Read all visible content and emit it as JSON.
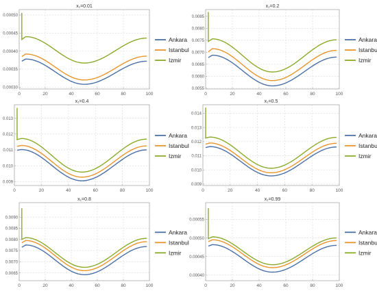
{
  "chart_data": [
    {
      "type": "line",
      "title": "x₁=0.01",
      "xlabel": "",
      "ylabel": "",
      "xlim": [
        0,
        100
      ],
      "ylim": [
        0.000295,
        0.000515
      ],
      "xticks": [
        0,
        20,
        40,
        60,
        80,
        100
      ],
      "yticks": [
        0.0003,
        0.00035,
        0.0004,
        0.00045,
        0.0005
      ],
      "ytick_labels": [
        "0.00030",
        "0.00035",
        "0.00040",
        "0.00045",
        "0.00050"
      ],
      "grid": true,
      "legend_position": "right",
      "series": [
        {
          "name": "Ankara",
          "values": {
            "start": 0.000372,
            "peak": 0.000378,
            "min": 0.000308,
            "end": 0.000372,
            "spike": 0.000372
          }
        },
        {
          "name": "Istanbul",
          "values": {
            "start": 0.000385,
            "peak": 0.000392,
            "min": 0.00032,
            "end": 0.000386,
            "spike": 0.000385
          }
        },
        {
          "name": "Izmir",
          "values": {
            "start": 0.000432,
            "peak": 0.00044,
            "min": 0.000367,
            "end": 0.000436,
            "spike": 0.000506
          }
        }
      ]
    },
    {
      "type": "line",
      "title": "x₁=0.2",
      "xlabel": "",
      "ylabel": "",
      "xlim": [
        0,
        100
      ],
      "ylim": [
        0.00547,
        0.00878
      ],
      "xticks": [
        0,
        20,
        40,
        60,
        80,
        100
      ],
      "yticks": [
        0.0055,
        0.006,
        0.0065,
        0.007,
        0.0075,
        0.008,
        0.0085
      ],
      "ytick_labels": [
        "0.0055",
        "0.0060",
        "0.0065",
        "0.0070",
        "0.0075",
        "0.0080",
        "0.0085"
      ],
      "grid": true,
      "legend_position": "right",
      "series": [
        {
          "name": "Ankara",
          "values": {
            "start": 0.00678,
            "peak": 0.00688,
            "min": 0.0056,
            "end": 0.0068,
            "spike": 0.00678
          }
        },
        {
          "name": "Istanbul",
          "values": {
            "start": 0.00702,
            "peak": 0.00715,
            "min": 0.00582,
            "end": 0.00708,
            "spike": 0.00702
          }
        },
        {
          "name": "Izmir",
          "values": {
            "start": 0.00745,
            "peak": 0.00756,
            "min": 0.00618,
            "end": 0.00752,
            "spike": 0.00868
          }
        }
      ]
    },
    {
      "type": "line",
      "title": "x₁=0.4",
      "xlabel": "",
      "ylabel": "",
      "xlim": [
        0,
        100
      ],
      "ylim": [
        0.00875,
        0.01385
      ],
      "xticks": [
        0,
        20,
        40,
        60,
        80,
        100
      ],
      "yticks": [
        0.009,
        0.01,
        0.011,
        0.012,
        0.013
      ],
      "ytick_labels": [
        "0.009",
        "0.010",
        "0.011",
        "0.012",
        "0.013"
      ],
      "grid": true,
      "legend_position": "right",
      "series": [
        {
          "name": "Ankara",
          "values": {
            "start": 0.01098,
            "peak": 0.01102,
            "min": 0.00905,
            "end": 0.011,
            "spike": 0.01098
          }
        },
        {
          "name": "Istanbul",
          "values": {
            "start": 0.01122,
            "peak": 0.01128,
            "min": 0.00928,
            "end": 0.01125,
            "spike": 0.01122
          }
        },
        {
          "name": "Izmir",
          "values": {
            "start": 0.01165,
            "peak": 0.01172,
            "min": 0.0096,
            "end": 0.01168,
            "spike": 0.01365
          }
        }
      ]
    },
    {
      "type": "line",
      "title": "x₁=0.5",
      "xlabel": "",
      "ylabel": "",
      "xlim": [
        0,
        100
      ],
      "ylim": [
        0.0089,
        0.0146
      ],
      "xticks": [
        0,
        20,
        40,
        60,
        80,
        100
      ],
      "yticks": [
        0.009,
        0.01,
        0.011,
        0.012,
        0.013,
        0.014
      ],
      "ytick_labels": [
        "0.009",
        "0.010",
        "0.011",
        "0.012",
        "0.013",
        "0.014"
      ],
      "grid": true,
      "legend_position": "right",
      "series": [
        {
          "name": "Ankara",
          "values": {
            "start": 0.01158,
            "peak": 0.01165,
            "min": 0.00958,
            "end": 0.01162,
            "spike": 0.01158
          }
        },
        {
          "name": "Istanbul",
          "values": {
            "start": 0.01182,
            "peak": 0.0119,
            "min": 0.0098,
            "end": 0.01188,
            "spike": 0.01182
          }
        },
        {
          "name": "Izmir",
          "values": {
            "start": 0.01225,
            "peak": 0.01232,
            "min": 0.01012,
            "end": 0.0123,
            "spike": 0.0144
          }
        }
      ]
    },
    {
      "type": "line",
      "title": "x₁=0.8",
      "xlabel": "",
      "ylabel": "",
      "xlim": [
        0,
        100
      ],
      "ylim": [
        0.00615,
        0.00965
      ],
      "xticks": [
        0,
        20,
        40,
        60,
        80,
        100
      ],
      "yticks": [
        0.0065,
        0.007,
        0.0075,
        0.008,
        0.0085,
        0.009
      ],
      "ytick_labels": [
        "0.0065",
        "0.0070",
        "0.0075",
        "0.0080",
        "0.0085",
        "0.0090"
      ],
      "grid": true,
      "legend_position": "right",
      "series": [
        {
          "name": "Ankara",
          "values": {
            "start": 0.00765,
            "peak": 0.00775,
            "min": 0.00642,
            "end": 0.00768,
            "spike": 0.00765
          }
        },
        {
          "name": "Istanbul",
          "values": {
            "start": 0.00785,
            "peak": 0.00795,
            "min": 0.0066,
            "end": 0.0079,
            "spike": 0.00785
          }
        },
        {
          "name": "Izmir",
          "values": {
            "start": 0.008,
            "peak": 0.00808,
            "min": 0.00675,
            "end": 0.00805,
            "spike": 0.0094
          }
        }
      ]
    },
    {
      "type": "line",
      "title": "x₁=0.99",
      "xlabel": "",
      "ylabel": "",
      "xlim": [
        0,
        100
      ],
      "ylim": [
        0.000385,
        0.000595
      ],
      "xticks": [
        0,
        20,
        40,
        60,
        80,
        100
      ],
      "yticks": [
        0.0004,
        0.00045,
        0.0005,
        0.00055
      ],
      "ytick_labels": [
        "0.00040",
        "0.00045",
        "0.00050",
        "0.00055"
      ],
      "grid": true,
      "legend_position": "right",
      "series": [
        {
          "name": "Ankara",
          "values": {
            "start": 0.000478,
            "peak": 0.000482,
            "min": 0.000408,
            "end": 0.00048,
            "spike": 0.000478
          }
        },
        {
          "name": "Istanbul",
          "values": {
            "start": 0.00049,
            "peak": 0.000495,
            "min": 0.00042,
            "end": 0.000493,
            "spike": 0.00049
          }
        },
        {
          "name": "Izmir",
          "values": {
            "start": 0.000498,
            "peak": 0.000503,
            "min": 0.000428,
            "end": 0.0005,
            "spike": 0.00058
          }
        }
      ]
    }
  ],
  "colors": {
    "Ankara": "#4a6fa5",
    "Istanbul": "#e8942a",
    "Izmir": "#8aaa2a",
    "grid": "#d8d8d8",
    "frame": "#aaaaaa",
    "text": "#555555"
  }
}
